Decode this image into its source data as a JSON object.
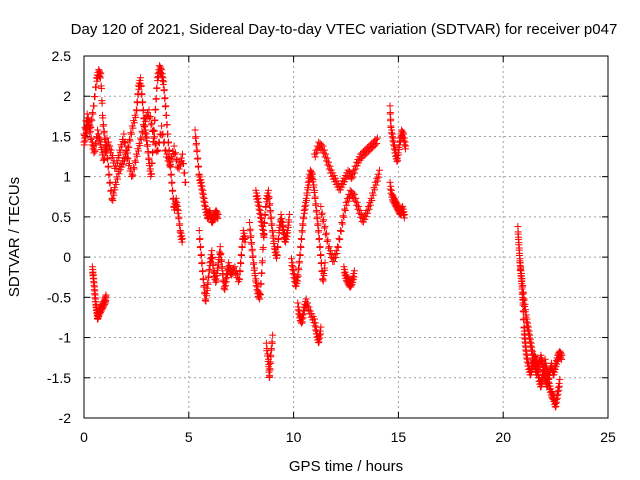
{
  "chart_data": {
    "type": "scatter",
    "title": "Day 120 of 2021, Sidereal Day-to-day VTEC variation (SDTVAR) for receiver p047",
    "xlabel": "GPS time / hours",
    "ylabel": "SDTVAR / TECUs",
    "xlim": [
      0,
      25
    ],
    "ylim": [
      -2,
      2.5
    ],
    "xticks": [
      0,
      5,
      10,
      15,
      20,
      25
    ],
    "yticks": [
      -2,
      -1.5,
      -1,
      -0.5,
      0,
      0.5,
      1,
      1.5,
      2,
      2.5
    ],
    "grid": true,
    "marker": "+",
    "color": "#ff0000",
    "series": [
      {
        "name": "SDTVAR",
        "segments": [
          [
            [
              0.0,
              1.5
            ],
            [
              0.15,
              1.75
            ],
            [
              0.3,
              1.6
            ],
            [
              0.45,
              1.85
            ],
            [
              0.6,
              2.2
            ],
            [
              0.7,
              2.3
            ],
            [
              0.8,
              2.25
            ],
            [
              0.9,
              1.7
            ],
            [
              1.0,
              1.45
            ],
            [
              1.1,
              1.3
            ],
            [
              1.2,
              1.0
            ],
            [
              1.35,
              0.7
            ],
            [
              1.5,
              0.9
            ],
            [
              1.7,
              1.1
            ],
            [
              1.9,
              1.2
            ],
            [
              2.1,
              1.35
            ],
            [
              2.3,
              1.6
            ],
            [
              2.5,
              1.8
            ],
            [
              2.6,
              2.1
            ],
            [
              2.7,
              2.2
            ],
            [
              2.8,
              1.9
            ],
            [
              2.9,
              1.6
            ],
            [
              3.0,
              1.45
            ],
            [
              3.1,
              1.2
            ],
            [
              3.2,
              1.0
            ],
            [
              3.3,
              1.4
            ],
            [
              3.4,
              1.8
            ],
            [
              3.5,
              2.2
            ],
            [
              3.6,
              2.35
            ],
            [
              3.7,
              2.3
            ],
            [
              3.8,
              2.15
            ],
            [
              3.9,
              1.85
            ],
            [
              4.0,
              1.5
            ],
            [
              4.1,
              1.2
            ],
            [
              4.2,
              0.9
            ],
            [
              4.3,
              0.6
            ],
            [
              4.4,
              0.7
            ],
            [
              4.5,
              0.55
            ],
            [
              4.6,
              0.3
            ],
            [
              4.7,
              0.2
            ]
          ],
          [
            [
              0.0,
              1.4
            ],
            [
              0.1,
              1.55
            ],
            [
              0.2,
              1.7
            ],
            [
              0.35,
              1.45
            ],
            [
              0.5,
              1.3
            ],
            [
              0.65,
              1.55
            ],
            [
              0.8,
              1.4
            ],
            [
              0.95,
              1.2
            ],
            [
              1.1,
              1.45
            ],
            [
              1.3,
              1.3
            ],
            [
              1.5,
              1.1
            ],
            [
              1.7,
              1.3
            ],
            [
              1.9,
              1.5
            ],
            [
              2.1,
              1.2
            ],
            [
              2.3,
              1.0
            ],
            [
              2.5,
              1.25
            ],
            [
              2.7,
              1.45
            ],
            [
              2.9,
              1.7
            ],
            [
              3.1,
              1.8
            ],
            [
              3.3,
              1.55
            ],
            [
              3.5,
              1.3
            ],
            [
              3.7,
              1.6
            ],
            [
              3.9,
              1.3
            ],
            [
              4.1,
              1.15
            ],
            [
              4.3,
              1.35
            ],
            [
              4.5,
              1.1
            ],
            [
              4.7,
              1.25
            ],
            [
              4.85,
              0.9
            ]
          ],
          [
            [
              0.4,
              -0.15
            ],
            [
              0.45,
              -0.25
            ],
            [
              0.5,
              -0.4
            ],
            [
              0.55,
              -0.55
            ],
            [
              0.6,
              -0.65
            ],
            [
              0.65,
              -0.75
            ],
            [
              0.7,
              -0.7
            ],
            [
              0.8,
              -0.65
            ],
            [
              0.9,
              -0.6
            ],
            [
              1.0,
              -0.55
            ],
            [
              1.05,
              -0.5
            ]
          ],
          [
            [
              5.3,
              1.55
            ],
            [
              5.4,
              1.3
            ],
            [
              5.5,
              1.0
            ],
            [
              5.6,
              0.9
            ],
            [
              5.7,
              0.75
            ],
            [
              5.8,
              0.6
            ],
            [
              5.9,
              0.5
            ],
            [
              6.0,
              0.55
            ],
            [
              6.1,
              0.45
            ],
            [
              6.2,
              0.5
            ],
            [
              6.3,
              0.55
            ],
            [
              6.4,
              0.5
            ]
          ],
          [
            [
              5.5,
              0.3
            ],
            [
              5.6,
              0.0
            ],
            [
              5.7,
              -0.3
            ],
            [
              5.8,
              -0.55
            ],
            [
              5.9,
              -0.35
            ],
            [
              6.0,
              -0.1
            ],
            [
              6.1,
              0.05
            ],
            [
              6.2,
              -0.2
            ],
            [
              6.3,
              -0.3
            ],
            [
              6.4,
              -0.1
            ],
            [
              6.5,
              0.1
            ],
            [
              6.6,
              -0.15
            ],
            [
              6.7,
              -0.4
            ],
            [
              6.8,
              -0.25
            ],
            [
              6.9,
              -0.1
            ],
            [
              7.0,
              -0.2
            ],
            [
              7.2,
              -0.15
            ],
            [
              7.4,
              -0.3
            ],
            [
              7.5,
              0.0
            ],
            [
              7.6,
              0.3
            ],
            [
              7.7,
              0.2
            ]
          ],
          [
            [
              7.9,
              0.4
            ],
            [
              8.0,
              0.15
            ],
            [
              8.1,
              -0.1
            ],
            [
              8.2,
              -0.3
            ],
            [
              8.3,
              -0.45
            ],
            [
              8.4,
              -0.5
            ],
            [
              8.5,
              -0.1
            ],
            [
              8.6,
              0.4
            ],
            [
              8.7,
              0.7
            ],
            [
              8.8,
              0.8
            ],
            [
              8.9,
              0.55
            ],
            [
              9.0,
              0.3
            ],
            [
              9.1,
              0.1
            ],
            [
              9.2,
              0.0
            ],
            [
              9.3,
              0.3
            ],
            [
              9.4,
              0.5
            ],
            [
              9.5,
              0.35
            ],
            [
              9.6,
              0.2
            ],
            [
              9.7,
              0.3
            ],
            [
              9.8,
              0.5
            ]
          ],
          [
            [
              8.7,
              -1.1
            ],
            [
              8.8,
              -1.3
            ],
            [
              8.85,
              -1.5
            ],
            [
              8.9,
              -1.25
            ],
            [
              9.0,
              -1.0
            ]
          ],
          [
            [
              8.2,
              0.8
            ],
            [
              8.3,
              0.7
            ],
            [
              8.4,
              0.55
            ],
            [
              8.5,
              0.4
            ],
            [
              8.6,
              0.25
            ]
          ],
          [
            [
              9.9,
              -0.05
            ],
            [
              10.0,
              -0.2
            ],
            [
              10.1,
              -0.35
            ],
            [
              10.2,
              -0.25
            ],
            [
              10.3,
              0.0
            ],
            [
              10.4,
              0.3
            ],
            [
              10.5,
              0.55
            ],
            [
              10.6,
              0.7
            ],
            [
              10.7,
              0.9
            ],
            [
              10.8,
              1.05
            ],
            [
              10.9,
              1.0
            ],
            [
              11.0,
              0.8
            ],
            [
              11.1,
              0.55
            ],
            [
              11.2,
              0.3
            ],
            [
              11.3,
              0.0
            ],
            [
              11.4,
              -0.3
            ],
            [
              11.5,
              -0.1
            ]
          ],
          [
            [
              10.2,
              -0.6
            ],
            [
              10.3,
              -0.75
            ],
            [
              10.4,
              -0.8
            ],
            [
              10.5,
              -0.65
            ],
            [
              10.6,
              -0.55
            ],
            [
              10.8,
              -0.7
            ],
            [
              11.0,
              -0.8
            ],
            [
              11.1,
              -0.95
            ],
            [
              11.2,
              -1.05
            ],
            [
              11.3,
              -0.9
            ]
          ],
          [
            [
              11.0,
              1.25
            ],
            [
              11.2,
              1.4
            ],
            [
              11.4,
              1.35
            ],
            [
              11.6,
              1.2
            ],
            [
              11.8,
              1.05
            ],
            [
              12.0,
              0.95
            ],
            [
              12.2,
              0.85
            ],
            [
              12.4,
              0.95
            ],
            [
              12.6,
              1.05
            ],
            [
              12.8,
              1.0
            ],
            [
              13.0,
              1.15
            ],
            [
              13.2,
              1.25
            ],
            [
              13.4,
              1.3
            ],
            [
              13.6,
              1.35
            ],
            [
              13.8,
              1.4
            ],
            [
              14.0,
              1.45
            ]
          ],
          [
            [
              11.3,
              0.6
            ],
            [
              11.5,
              0.35
            ],
            [
              11.7,
              0.1
            ],
            [
              11.9,
              -0.05
            ],
            [
              12.1,
              0.1
            ],
            [
              12.3,
              0.4
            ],
            [
              12.5,
              0.65
            ],
            [
              12.7,
              0.8
            ],
            [
              12.9,
              0.75
            ],
            [
              13.1,
              0.6
            ],
            [
              13.3,
              0.45
            ],
            [
              13.5,
              0.55
            ],
            [
              13.7,
              0.7
            ],
            [
              13.9,
              0.9
            ],
            [
              14.1,
              1.05
            ]
          ],
          [
            [
              12.4,
              -0.15
            ],
            [
              12.5,
              -0.25
            ],
            [
              12.6,
              -0.3
            ],
            [
              12.7,
              -0.35
            ],
            [
              12.8,
              -0.3
            ],
            [
              12.9,
              -0.2
            ]
          ],
          [
            [
              14.6,
              1.85
            ],
            [
              14.65,
              1.6
            ],
            [
              14.75,
              1.45
            ],
            [
              14.85,
              1.3
            ],
            [
              14.95,
              1.2
            ],
            [
              15.05,
              1.4
            ],
            [
              15.15,
              1.55
            ],
            [
              15.25,
              1.5
            ],
            [
              15.35,
              1.35
            ]
          ],
          [
            [
              14.6,
              0.9
            ],
            [
              14.7,
              0.75
            ],
            [
              14.8,
              0.7
            ],
            [
              14.9,
              0.65
            ],
            [
              15.0,
              0.6
            ],
            [
              15.1,
              0.55
            ],
            [
              15.2,
              0.6
            ],
            [
              15.3,
              0.5
            ]
          ],
          [
            [
              20.7,
              0.35
            ],
            [
              20.75,
              0.15
            ],
            [
              20.8,
              -0.05
            ],
            [
              20.85,
              -0.2
            ],
            [
              20.9,
              -0.4
            ],
            [
              20.95,
              -0.6
            ],
            [
              21.0,
              -0.9
            ],
            [
              21.05,
              -1.05
            ],
            [
              21.1,
              -1.2
            ],
            [
              21.2,
              -1.35
            ],
            [
              21.3,
              -1.45
            ],
            [
              21.4,
              -1.35
            ],
            [
              21.5,
              -1.25
            ],
            [
              21.6,
              -1.3
            ],
            [
              21.7,
              -1.5
            ],
            [
              21.8,
              -1.6
            ],
            [
              21.9,
              -1.45
            ],
            [
              22.0,
              -1.3
            ],
            [
              22.1,
              -1.45
            ],
            [
              22.2,
              -1.6
            ],
            [
              22.3,
              -1.7
            ],
            [
              22.4,
              -1.75
            ],
            [
              22.5,
              -1.85
            ],
            [
              22.6,
              -1.7
            ],
            [
              22.7,
              -1.55
            ]
          ],
          [
            [
              20.8,
              -0.1
            ],
            [
              20.9,
              -0.3
            ],
            [
              21.0,
              -0.55
            ],
            [
              21.1,
              -0.75
            ],
            [
              21.2,
              -0.9
            ],
            [
              21.3,
              -1.05
            ],
            [
              21.4,
              -1.2
            ],
            [
              21.5,
              -1.35
            ],
            [
              21.6,
              -1.45
            ],
            [
              21.7,
              -1.35
            ],
            [
              21.8,
              -1.25
            ],
            [
              21.9,
              -1.35
            ],
            [
              22.0,
              -1.5
            ],
            [
              22.1,
              -1.6
            ],
            [
              22.2,
              -1.45
            ],
            [
              22.3,
              -1.35
            ],
            [
              22.4,
              -1.45
            ],
            [
              22.5,
              -1.35
            ],
            [
              22.6,
              -1.25
            ],
            [
              22.7,
              -1.2
            ],
            [
              22.8,
              -1.25
            ]
          ]
        ]
      }
    ]
  }
}
